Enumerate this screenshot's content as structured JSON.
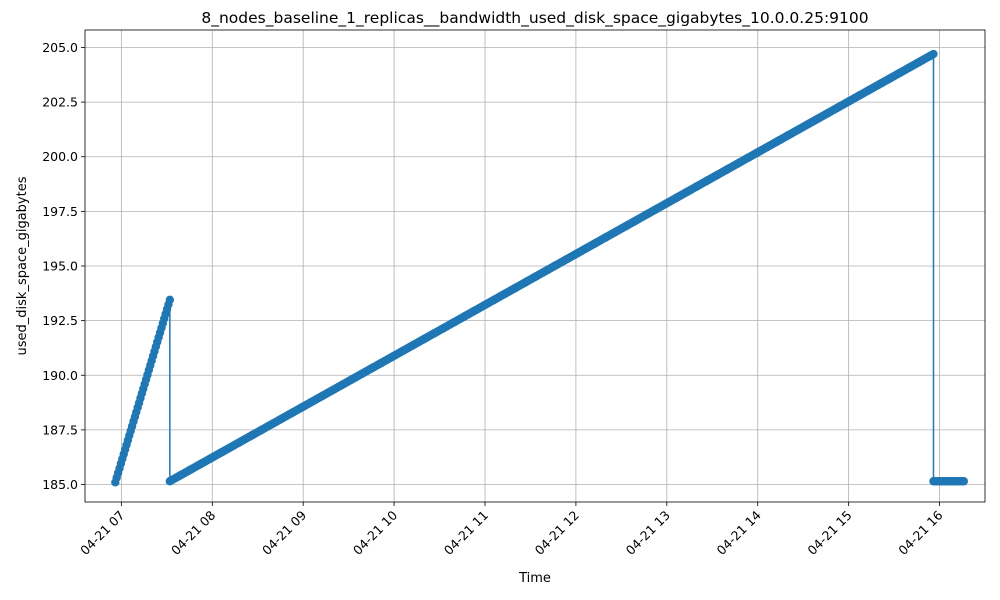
{
  "chart_data": {
    "type": "line",
    "title": "8_nodes_baseline_1_replicas__bandwidth_used_disk_space_gigabytes_10.0.0.25:9100",
    "xlabel": "Time",
    "ylabel": "used_disk_space_gigabytes",
    "x_ticks": [
      "04-21 07",
      "04-21 08",
      "04-21 09",
      "04-21 10",
      "04-21 11",
      "04-21 12",
      "04-21 13",
      "04-21 14",
      "04-21 15",
      "04-21 16"
    ],
    "y_ticks": [
      "185.0",
      "187.5",
      "190.0",
      "192.5",
      "195.0",
      "197.5",
      "200.0",
      "202.5",
      "205.0"
    ],
    "xlim": [
      "04-21 06:36",
      "04-21 16:30"
    ],
    "ylim": [
      184.2,
      205.8
    ],
    "grid": true,
    "marker": "circle",
    "color": "#1f77b4",
    "series": [
      {
        "segments": [
          {
            "start": "04-21 06:56",
            "end": "04-21 07:32",
            "count": 40,
            "y_start": 185.1,
            "y_end": 193.45
          },
          {
            "start": "04-21 07:32",
            "end": "04-21 15:56",
            "count": 500,
            "y_start": 185.15,
            "y_end": 204.7
          },
          {
            "start": "04-21 15:56",
            "end": "04-21 16:16",
            "count": 22,
            "y_start": 185.15,
            "y_end": 185.15
          }
        ]
      }
    ]
  }
}
